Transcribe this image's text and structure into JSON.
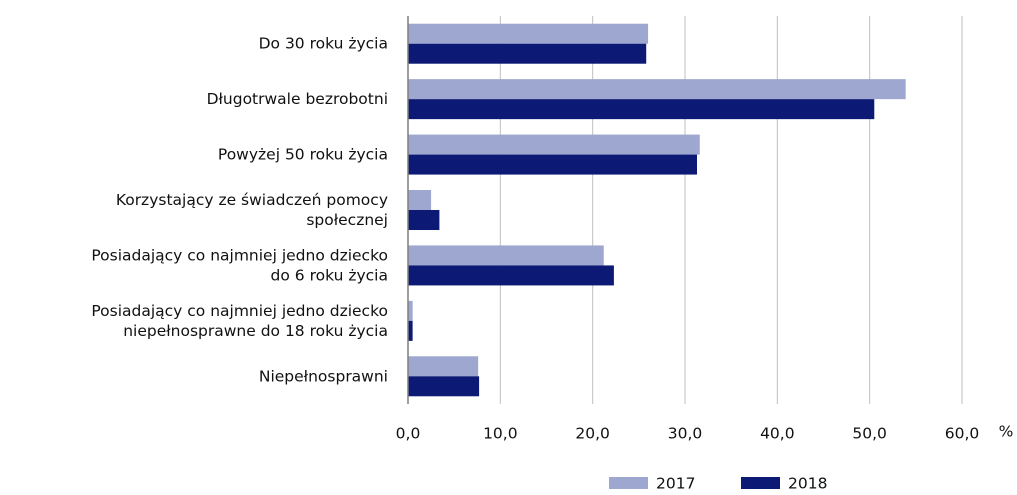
{
  "chart_data": {
    "type": "barh",
    "categories": [
      [
        "Do 30 roku życia"
      ],
      [
        "Długotrwale bezrobotni"
      ],
      [
        "Powyżej 50 roku życia"
      ],
      [
        "Korzystający ze świadczeń pomocy",
        "społecznej"
      ],
      [
        "Posiadający co najmniej jedno dziecko",
        "do 6 roku życia"
      ],
      [
        "Posiadający co najmniej jedno dziecko",
        "niepełnosprawne do 18 roku życia"
      ],
      [
        "Niepełnosprawni"
      ]
    ],
    "series": [
      {
        "name": "2017",
        "color": "#9ea7cf",
        "values": [
          26.0,
          53.9,
          31.6,
          2.5,
          21.2,
          0.5,
          7.6
        ]
      },
      {
        "name": "2018",
        "color": "#0d1a75",
        "values": [
          25.8,
          50.5,
          31.3,
          3.4,
          22.3,
          0.5,
          7.7
        ]
      }
    ],
    "xlim": [
      0,
      60
    ],
    "xticks": [
      {
        "value": 0,
        "label": "0,0"
      },
      {
        "value": 10,
        "label": "10,0"
      },
      {
        "value": 20,
        "label": "20,0"
      },
      {
        "value": 30,
        "label": "30,0"
      },
      {
        "value": 40,
        "label": "40,0"
      },
      {
        "value": 50,
        "label": "50,0"
      },
      {
        "value": 60,
        "label": "60,0"
      }
    ],
    "x_unit": "%",
    "grid": true,
    "legend": "bottom"
  }
}
